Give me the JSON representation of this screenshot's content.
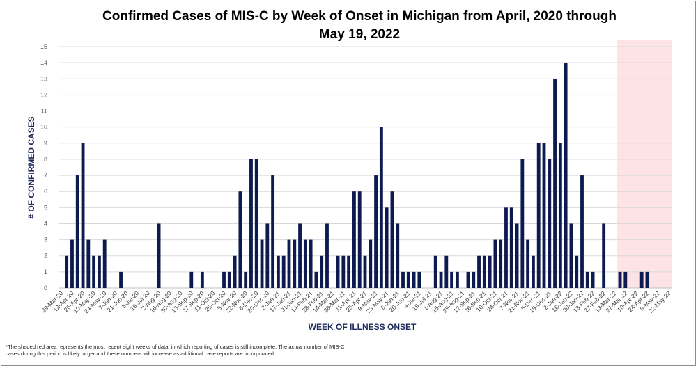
{
  "chart_data": {
    "type": "bar",
    "title_line1": "Confirmed Cases of MIS-C by Week of Onset in Michigan from April, 2020 through",
    "title_line2": "May 19, 2022",
    "xlabel": "WEEK OF ILLNESS ONSET",
    "ylabel": "# OF CONFIRMED CASES",
    "ylim": [
      0,
      15
    ],
    "yticks": [
      0,
      1,
      2,
      3,
      4,
      5,
      6,
      7,
      8,
      9,
      10,
      11,
      12,
      13,
      14,
      15
    ],
    "grid": true,
    "bar_color": "#0d1a4f",
    "shade_color": "#fde3e6",
    "shaded_weeks_start_index": 103,
    "tick_labels": [
      "29-Mar-20",
      "12-Apr-20",
      "26-Apr-20",
      "10-May-20",
      "24-May-20",
      "7-Jun-20",
      "21-Jun-20",
      "5-Jul-20",
      "19-Jul-20",
      "2-Aug-20",
      "16-Aug-20",
      "30-Aug-20",
      "13-Sep-20",
      "27-Sep-20",
      "11-Oct-20",
      "25-Oct-20",
      "8-Nov-20",
      "22-Nov-20",
      "6-Dec-20",
      "20-Dec-20",
      "3-Jan-21",
      "17-Jan-21",
      "31-Jan-21",
      "14-Feb-21",
      "28-Feb-21",
      "14-Mar-21",
      "28-Mar-21",
      "11-Apr-21",
      "25-Apr-21",
      "9-May-21",
      "23-May-21",
      "6-Jun-21",
      "20-Jun-21",
      "4-Jul-21",
      "18-Jul-21",
      "1-Aug-21",
      "15-Aug-21",
      "29-Aug-21",
      "12-Sep-21",
      "26-Sep-21",
      "10-Oct-21",
      "24-Oct-21",
      "7-Nov-21",
      "21-Nov-21",
      "5-Dec-21",
      "19-Dec-21",
      "2-Jan-22",
      "16-Jan-22",
      "30-Jan-22",
      "13-Feb-22",
      "27-Feb-22",
      "13-Mar-22",
      "27-Mar-22",
      "10-Apr-22",
      "24-Apr-22",
      "8-May-22",
      "22-May-22"
    ],
    "values": [
      0,
      2,
      3,
      7,
      9,
      3,
      2,
      2,
      3,
      0,
      0,
      1,
      0,
      0,
      0,
      0,
      0,
      0,
      4,
      0,
      0,
      0,
      0,
      0,
      1,
      0,
      1,
      0,
      0,
      0,
      1,
      1,
      2,
      6,
      1,
      8,
      8,
      3,
      4,
      7,
      2,
      2,
      3,
      3,
      4,
      3,
      3,
      1,
      2,
      4,
      0,
      2,
      2,
      2,
      6,
      6,
      2,
      3,
      7,
      10,
      5,
      6,
      4,
      1,
      1,
      1,
      1,
      0,
      0,
      2,
      1,
      2,
      1,
      1,
      0,
      1,
      1,
      2,
      2,
      2,
      3,
      3,
      5,
      5,
      4,
      8,
      3,
      2,
      9,
      9,
      8,
      13,
      9,
      14,
      4,
      2,
      7,
      1,
      1,
      0,
      4,
      0,
      0,
      1,
      1,
      0,
      0,
      1,
      1,
      0,
      0,
      0,
      0
    ]
  },
  "footnote_line1": "*The shaded red area represents the most recent eight weeks of data, in which reporting of cases is still incomplete. The actual number of MIS-C",
  "footnote_line2": "cases during this period is likely larger and these numbers will increase as additional case reports are incorporated."
}
